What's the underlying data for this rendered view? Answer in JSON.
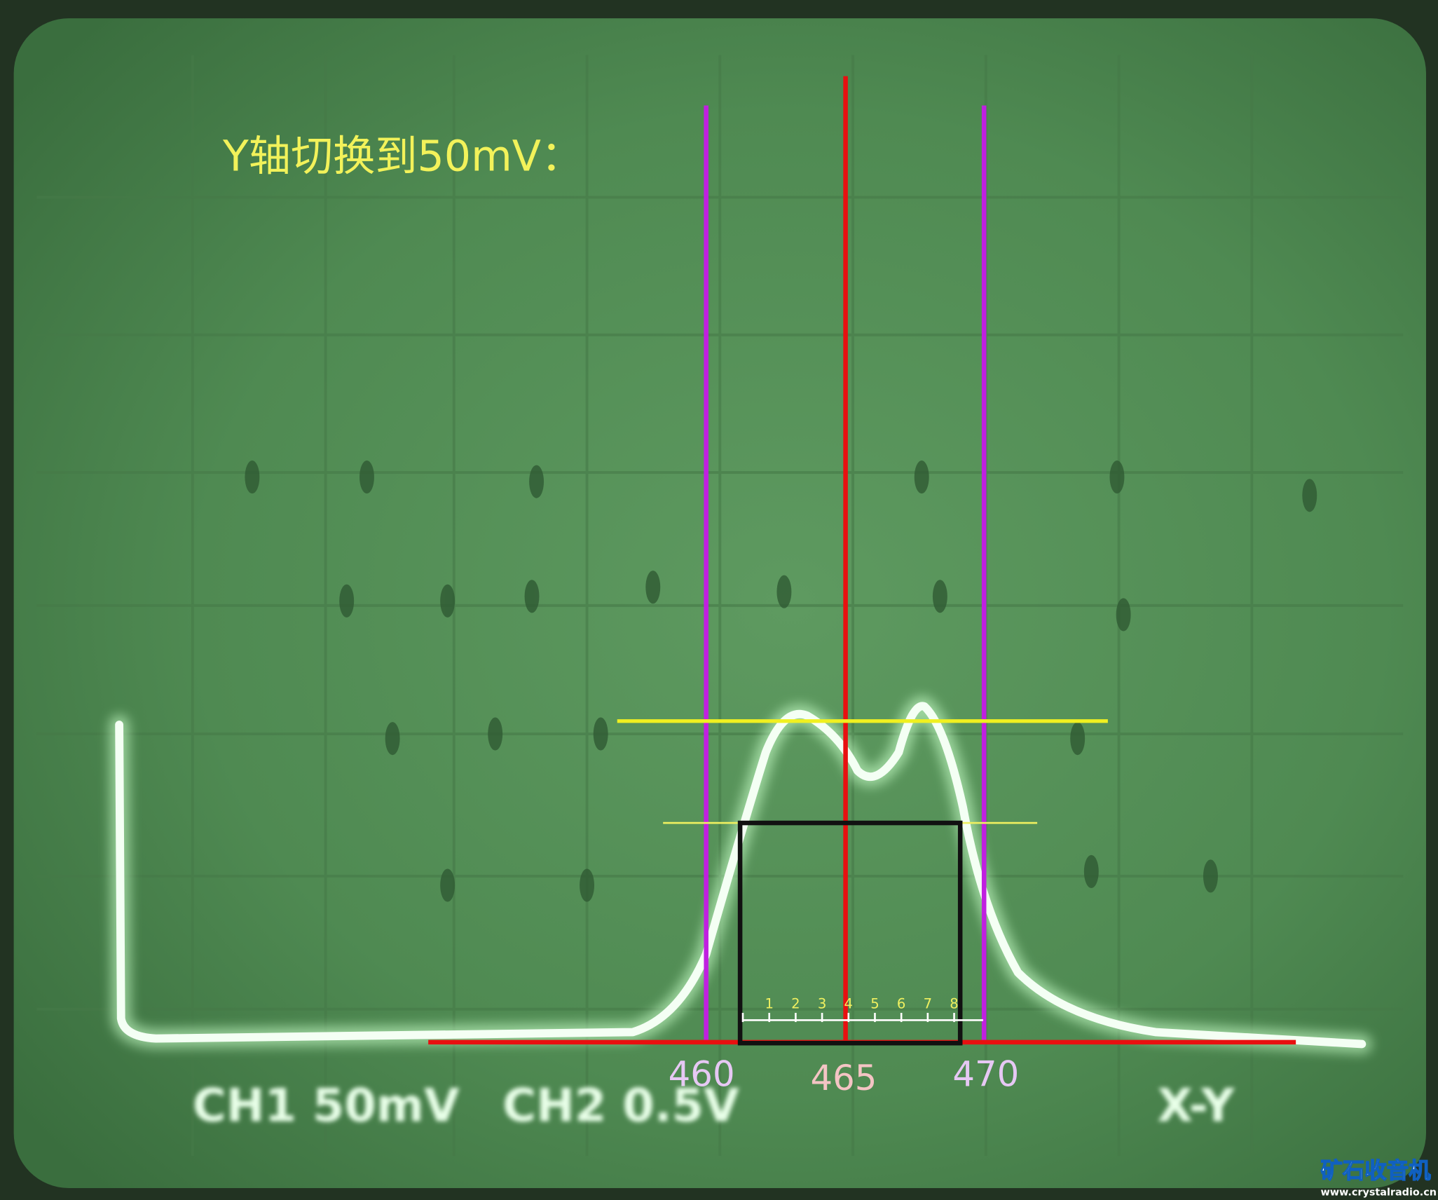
{
  "annotation": {
    "title": "Y轴切换到50mV："
  },
  "frequency_labels": {
    "left": 460,
    "center": 465,
    "right": 470
  },
  "scale_labels": [
    1,
    2,
    3,
    4,
    5,
    6,
    7,
    8
  ],
  "screen_readout": {
    "ch1": "CH1 50mV",
    "ch2": "CH2 0.5V",
    "mode": "X-Y"
  },
  "watermark": {
    "name": "矿石收音机",
    "url": "www.crystalradio.cn"
  }
}
